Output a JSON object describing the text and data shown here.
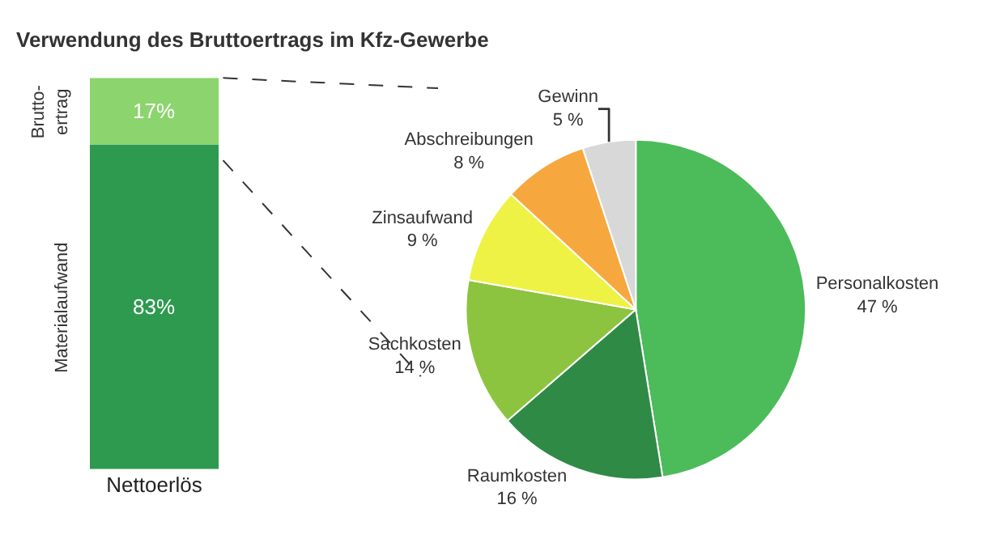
{
  "chart_data": [
    {
      "type": "bar",
      "title": "Verwendung des Bruttoertrags im Kfz-Gewerbe",
      "categories": [
        "Nettoerlös"
      ],
      "stacked": true,
      "tick_labels": "x",
      "series": [
        {
          "name": "Materialaufwand",
          "color": "#2e9a50",
          "values": [
            83
          ],
          "value_labels": [
            "83%"
          ]
        },
        {
          "name": "Brutto-\nertrag",
          "color": "#8cd46e",
          "values": [
            17
          ],
          "value_labels": [
            "17%"
          ]
        }
      ]
    },
    {
      "type": "pie",
      "categories": [
        "Personalkosten",
        "Raumkosten",
        "Sachkosten",
        "Zinsaufwand",
        "Abschreibungen",
        "Gewinn"
      ],
      "values": [
        47,
        16,
        14,
        9,
        8,
        5
      ],
      "value_labels": [
        "47 %",
        "16 %",
        "14 %",
        "9 %",
        "8 %",
        "5 %"
      ],
      "colors": [
        "#4cbb5a",
        "#2f8a45",
        "#8cc43f",
        "#eef244",
        "#f6a83f",
        "#d8d8d8"
      ]
    }
  ]
}
